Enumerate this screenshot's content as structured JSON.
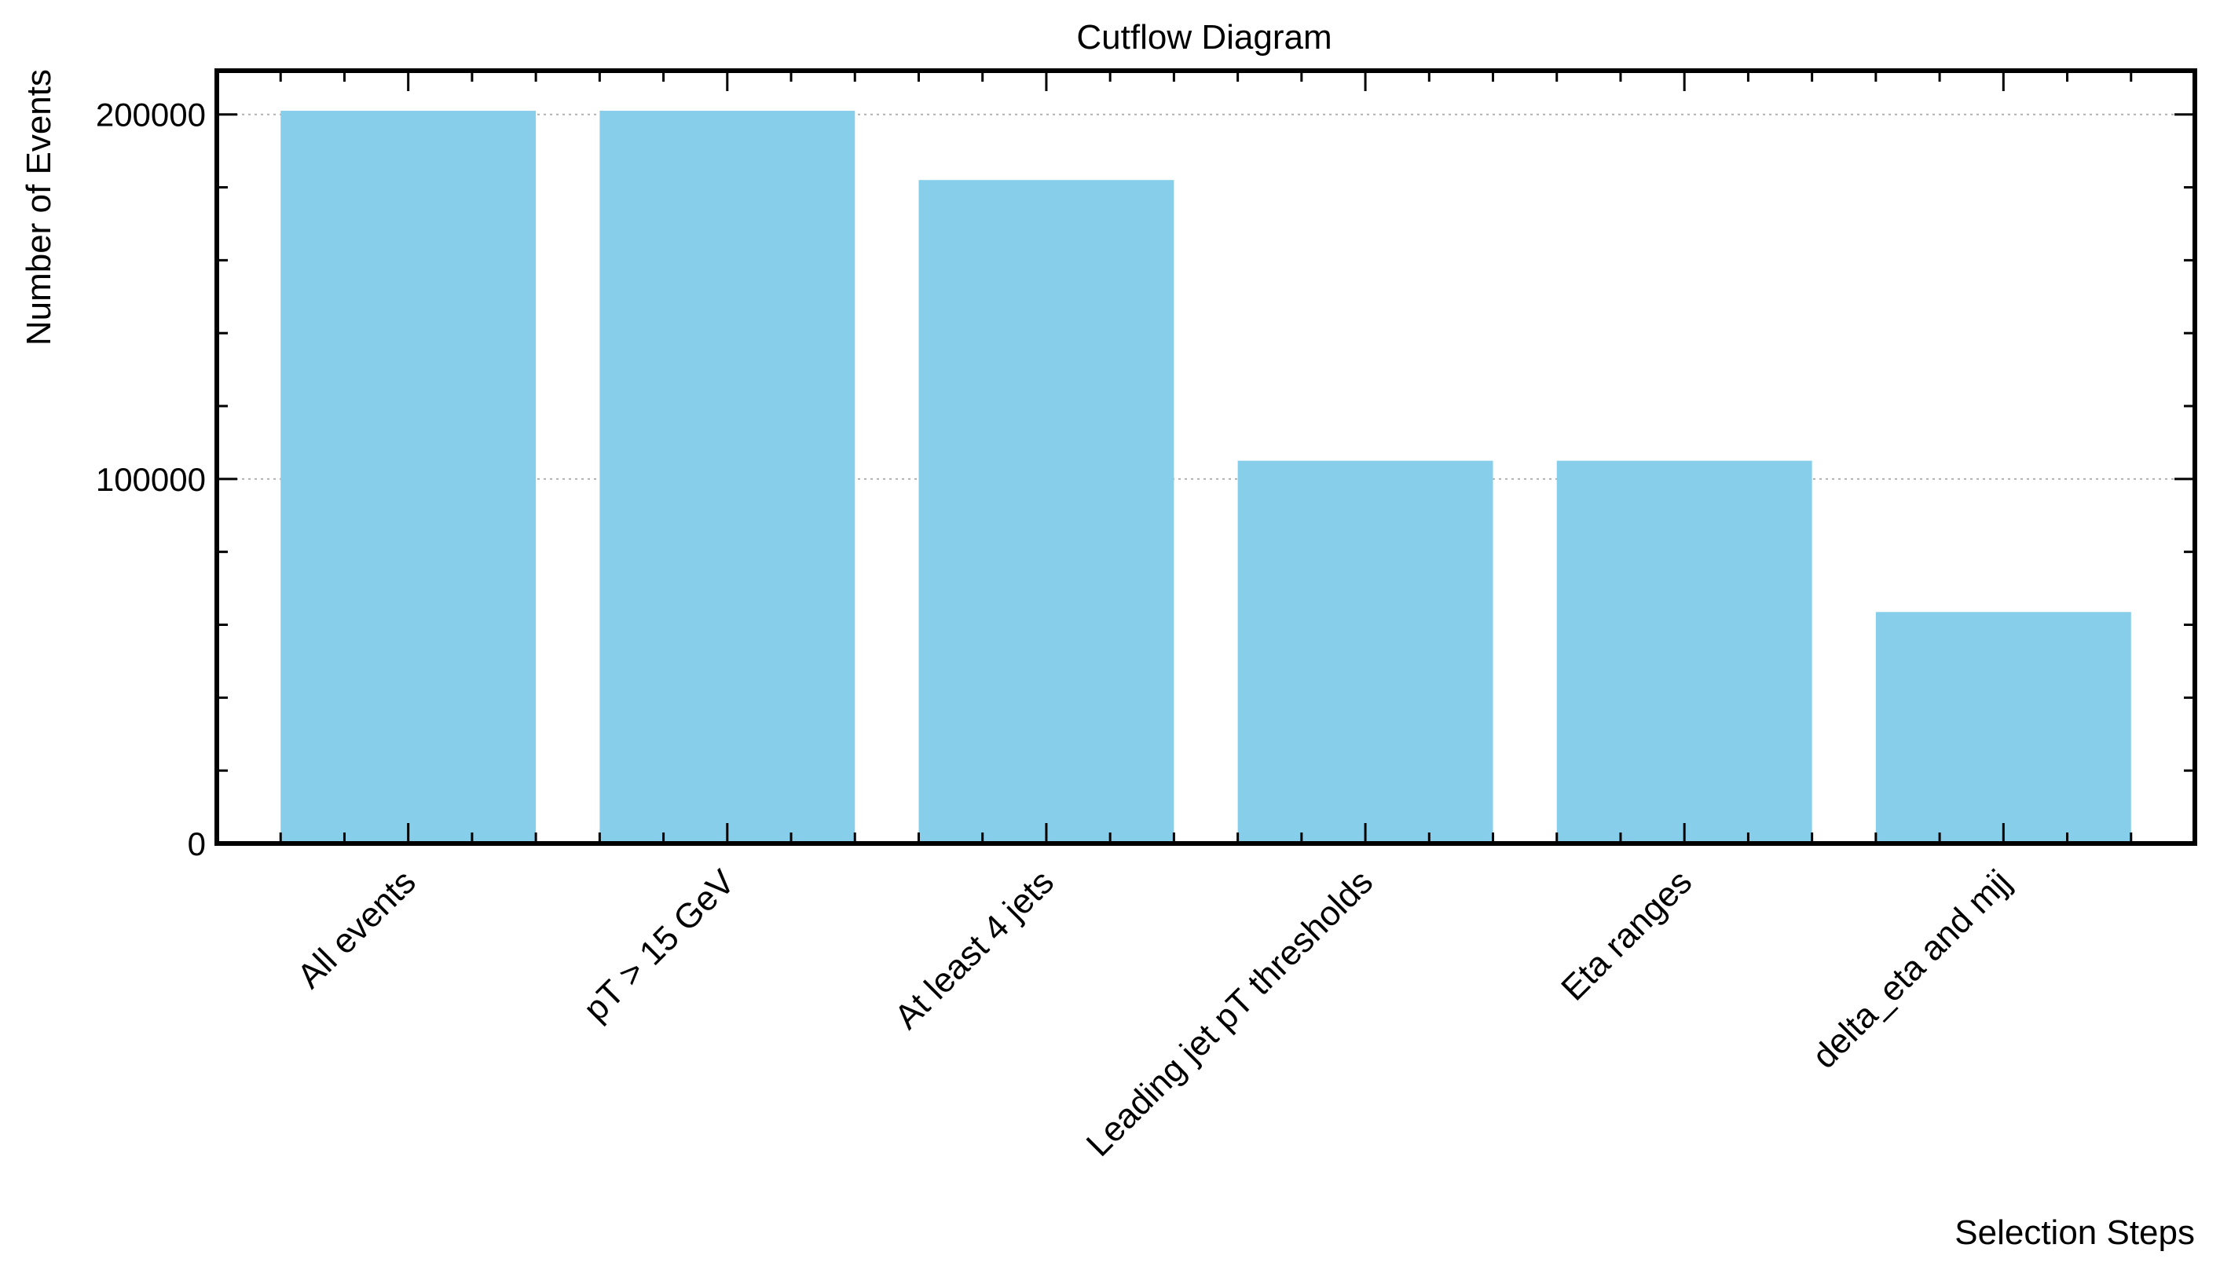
{
  "chart_data": {
    "type": "bar",
    "title": "Cutflow Diagram",
    "xlabel": "Selection Steps",
    "ylabel": "Number of Events",
    "categories": [
      "All events",
      "pT > 15 GeV",
      "At least 4 jets",
      "Leading jet pT thresholds",
      "Eta ranges",
      "delta_eta and mjj"
    ],
    "values": [
      201000,
      201000,
      182000,
      105000,
      105000,
      63500
    ],
    "ylim": [
      0,
      212000
    ],
    "yticks": [
      0,
      100000,
      200000
    ],
    "ytick_labels": [
      "0",
      "100000",
      "200000"
    ],
    "grid": true,
    "bar_color": "#87ceeb"
  }
}
